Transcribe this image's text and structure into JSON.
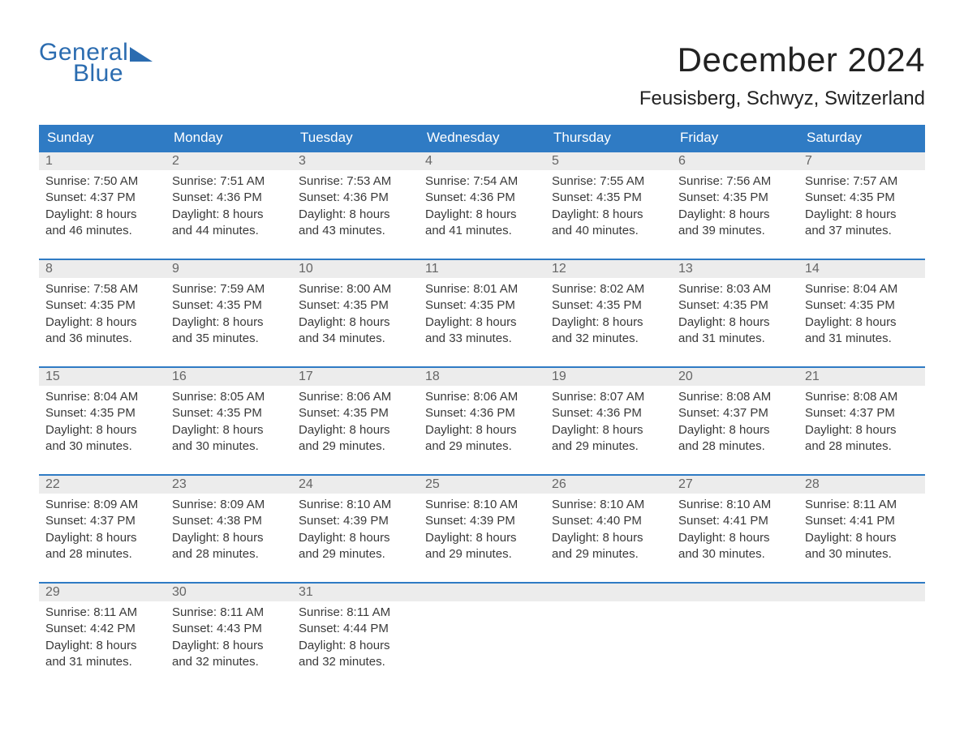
{
  "logo": {
    "word1": "General",
    "word2": "Blue",
    "brand_color": "#2b6cb0"
  },
  "title": "December 2024",
  "location": "Feusisberg, Schwyz, Switzerland",
  "colors": {
    "header_bg": "#2f7bc4",
    "header_text": "#ffffff",
    "date_row_bg": "#ececec",
    "date_text": "#666666",
    "cell_text": "#3a3a3a",
    "week_border": "#2f7bc4",
    "page_bg": "#ffffff"
  },
  "typography": {
    "title_fontsize": 42,
    "location_fontsize": 24,
    "day_header_fontsize": 17,
    "date_num_fontsize": 16,
    "cell_fontsize": 15,
    "logo_fontsize": 30
  },
  "layout": {
    "columns": 7,
    "weeks": 5,
    "cell_lines": 4
  },
  "day_names": [
    "Sunday",
    "Monday",
    "Tuesday",
    "Wednesday",
    "Thursday",
    "Friday",
    "Saturday"
  ],
  "weeks": [
    {
      "dates": [
        "1",
        "2",
        "3",
        "4",
        "5",
        "6",
        "7"
      ],
      "cells": [
        {
          "sunrise": "Sunrise: 7:50 AM",
          "sunset": "Sunset: 4:37 PM",
          "d1": "Daylight: 8 hours",
          "d2": "and 46 minutes."
        },
        {
          "sunrise": "Sunrise: 7:51 AM",
          "sunset": "Sunset: 4:36 PM",
          "d1": "Daylight: 8 hours",
          "d2": "and 44 minutes."
        },
        {
          "sunrise": "Sunrise: 7:53 AM",
          "sunset": "Sunset: 4:36 PM",
          "d1": "Daylight: 8 hours",
          "d2": "and 43 minutes."
        },
        {
          "sunrise": "Sunrise: 7:54 AM",
          "sunset": "Sunset: 4:36 PM",
          "d1": "Daylight: 8 hours",
          "d2": "and 41 minutes."
        },
        {
          "sunrise": "Sunrise: 7:55 AM",
          "sunset": "Sunset: 4:35 PM",
          "d1": "Daylight: 8 hours",
          "d2": "and 40 minutes."
        },
        {
          "sunrise": "Sunrise: 7:56 AM",
          "sunset": "Sunset: 4:35 PM",
          "d1": "Daylight: 8 hours",
          "d2": "and 39 minutes."
        },
        {
          "sunrise": "Sunrise: 7:57 AM",
          "sunset": "Sunset: 4:35 PM",
          "d1": "Daylight: 8 hours",
          "d2": "and 37 minutes."
        }
      ]
    },
    {
      "dates": [
        "8",
        "9",
        "10",
        "11",
        "12",
        "13",
        "14"
      ],
      "cells": [
        {
          "sunrise": "Sunrise: 7:58 AM",
          "sunset": "Sunset: 4:35 PM",
          "d1": "Daylight: 8 hours",
          "d2": "and 36 minutes."
        },
        {
          "sunrise": "Sunrise: 7:59 AM",
          "sunset": "Sunset: 4:35 PM",
          "d1": "Daylight: 8 hours",
          "d2": "and 35 minutes."
        },
        {
          "sunrise": "Sunrise: 8:00 AM",
          "sunset": "Sunset: 4:35 PM",
          "d1": "Daylight: 8 hours",
          "d2": "and 34 minutes."
        },
        {
          "sunrise": "Sunrise: 8:01 AM",
          "sunset": "Sunset: 4:35 PM",
          "d1": "Daylight: 8 hours",
          "d2": "and 33 minutes."
        },
        {
          "sunrise": "Sunrise: 8:02 AM",
          "sunset": "Sunset: 4:35 PM",
          "d1": "Daylight: 8 hours",
          "d2": "and 32 minutes."
        },
        {
          "sunrise": "Sunrise: 8:03 AM",
          "sunset": "Sunset: 4:35 PM",
          "d1": "Daylight: 8 hours",
          "d2": "and 31 minutes."
        },
        {
          "sunrise": "Sunrise: 8:04 AM",
          "sunset": "Sunset: 4:35 PM",
          "d1": "Daylight: 8 hours",
          "d2": "and 31 minutes."
        }
      ]
    },
    {
      "dates": [
        "15",
        "16",
        "17",
        "18",
        "19",
        "20",
        "21"
      ],
      "cells": [
        {
          "sunrise": "Sunrise: 8:04 AM",
          "sunset": "Sunset: 4:35 PM",
          "d1": "Daylight: 8 hours",
          "d2": "and 30 minutes."
        },
        {
          "sunrise": "Sunrise: 8:05 AM",
          "sunset": "Sunset: 4:35 PM",
          "d1": "Daylight: 8 hours",
          "d2": "and 30 minutes."
        },
        {
          "sunrise": "Sunrise: 8:06 AM",
          "sunset": "Sunset: 4:35 PM",
          "d1": "Daylight: 8 hours",
          "d2": "and 29 minutes."
        },
        {
          "sunrise": "Sunrise: 8:06 AM",
          "sunset": "Sunset: 4:36 PM",
          "d1": "Daylight: 8 hours",
          "d2": "and 29 minutes."
        },
        {
          "sunrise": "Sunrise: 8:07 AM",
          "sunset": "Sunset: 4:36 PM",
          "d1": "Daylight: 8 hours",
          "d2": "and 29 minutes."
        },
        {
          "sunrise": "Sunrise: 8:08 AM",
          "sunset": "Sunset: 4:37 PM",
          "d1": "Daylight: 8 hours",
          "d2": "and 28 minutes."
        },
        {
          "sunrise": "Sunrise: 8:08 AM",
          "sunset": "Sunset: 4:37 PM",
          "d1": "Daylight: 8 hours",
          "d2": "and 28 minutes."
        }
      ]
    },
    {
      "dates": [
        "22",
        "23",
        "24",
        "25",
        "26",
        "27",
        "28"
      ],
      "cells": [
        {
          "sunrise": "Sunrise: 8:09 AM",
          "sunset": "Sunset: 4:37 PM",
          "d1": "Daylight: 8 hours",
          "d2": "and 28 minutes."
        },
        {
          "sunrise": "Sunrise: 8:09 AM",
          "sunset": "Sunset: 4:38 PM",
          "d1": "Daylight: 8 hours",
          "d2": "and 28 minutes."
        },
        {
          "sunrise": "Sunrise: 8:10 AM",
          "sunset": "Sunset: 4:39 PM",
          "d1": "Daylight: 8 hours",
          "d2": "and 29 minutes."
        },
        {
          "sunrise": "Sunrise: 8:10 AM",
          "sunset": "Sunset: 4:39 PM",
          "d1": "Daylight: 8 hours",
          "d2": "and 29 minutes."
        },
        {
          "sunrise": "Sunrise: 8:10 AM",
          "sunset": "Sunset: 4:40 PM",
          "d1": "Daylight: 8 hours",
          "d2": "and 29 minutes."
        },
        {
          "sunrise": "Sunrise: 8:10 AM",
          "sunset": "Sunset: 4:41 PM",
          "d1": "Daylight: 8 hours",
          "d2": "and 30 minutes."
        },
        {
          "sunrise": "Sunrise: 8:11 AM",
          "sunset": "Sunset: 4:41 PM",
          "d1": "Daylight: 8 hours",
          "d2": "and 30 minutes."
        }
      ]
    },
    {
      "dates": [
        "29",
        "30",
        "31",
        "",
        "",
        "",
        ""
      ],
      "cells": [
        {
          "sunrise": "Sunrise: 8:11 AM",
          "sunset": "Sunset: 4:42 PM",
          "d1": "Daylight: 8 hours",
          "d2": "and 31 minutes."
        },
        {
          "sunrise": "Sunrise: 8:11 AM",
          "sunset": "Sunset: 4:43 PM",
          "d1": "Daylight: 8 hours",
          "d2": "and 32 minutes."
        },
        {
          "sunrise": "Sunrise: 8:11 AM",
          "sunset": "Sunset: 4:44 PM",
          "d1": "Daylight: 8 hours",
          "d2": "and 32 minutes."
        },
        {
          "sunrise": "",
          "sunset": "",
          "d1": "",
          "d2": ""
        },
        {
          "sunrise": "",
          "sunset": "",
          "d1": "",
          "d2": ""
        },
        {
          "sunrise": "",
          "sunset": "",
          "d1": "",
          "d2": ""
        },
        {
          "sunrise": "",
          "sunset": "",
          "d1": "",
          "d2": ""
        }
      ]
    }
  ]
}
